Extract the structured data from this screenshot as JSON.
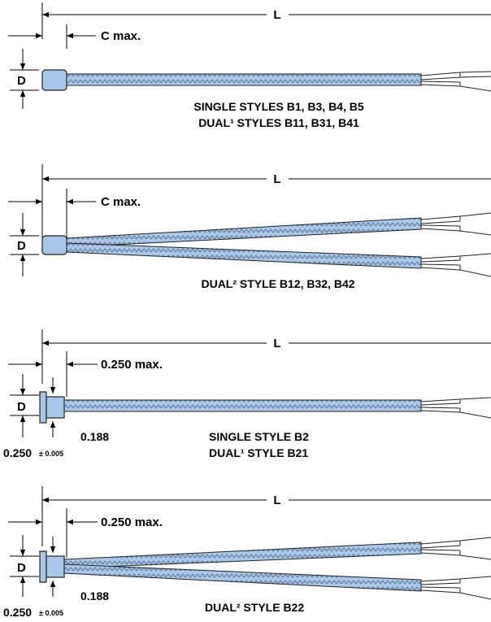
{
  "colors": {
    "sheath": "#a8c7e8",
    "sheath_edge": "#222222",
    "braid": "#4a5d7a",
    "line": "#000000"
  },
  "panels": [
    {
      "length_label": "L",
      "c_label": "C max.",
      "d_label": "D",
      "caption_lines": [
        "SINGLE STYLES B1, B3, B4, B5",
        "DUAL¹ STYLES B11, B31, B41"
      ]
    },
    {
      "length_label": "L",
      "c_label": "C max.",
      "d_label": "D",
      "caption_lines": [
        "DUAL² STYLE B12, B32, B42"
      ]
    },
    {
      "length_label": "L",
      "c_label": "0.250 max.",
      "d_label": "D",
      "flange_dim": "0.188",
      "flange_tol_value": "0.250",
      "flange_tol": "± 0.005",
      "caption_lines": [
        "SINGLE STYLE B2",
        "DUAL¹ STYLE B21"
      ]
    },
    {
      "length_label": "L",
      "c_label": "0.250 max.",
      "d_label": "D",
      "flange_dim": "0.188",
      "flange_tol_value": "0.250",
      "flange_tol": "± 0.005",
      "caption_lines": [
        "DUAL² STYLE B22"
      ]
    }
  ]
}
